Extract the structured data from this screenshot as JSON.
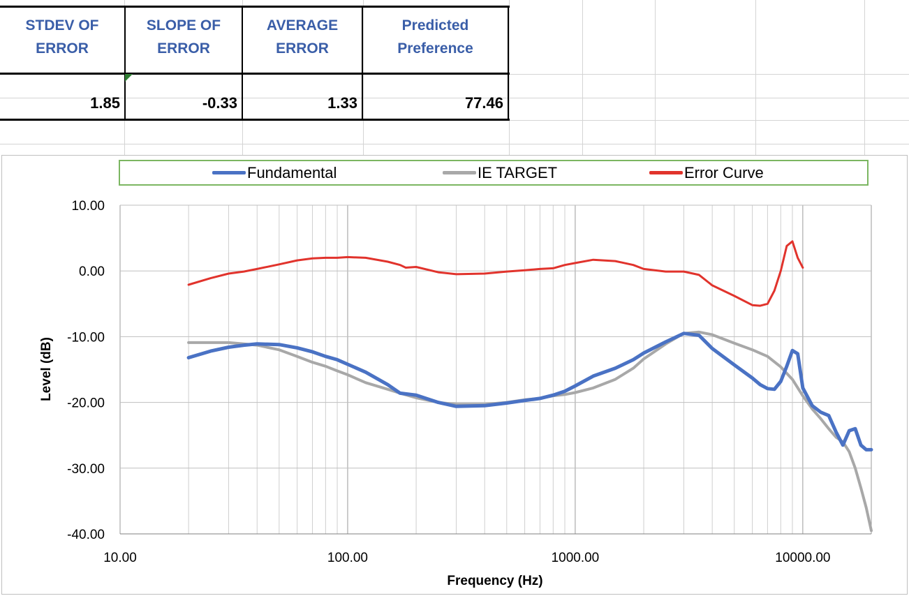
{
  "stats": {
    "headers": [
      "STDEV OF\nERROR",
      "SLOPE OF\nERROR",
      "AVERAGE\nERROR",
      "Predicted\nPreference"
    ],
    "values": [
      "1.85",
      "-0.33",
      "1.33",
      "77.46"
    ],
    "header_color": "#3a5ea8"
  },
  "legend": {
    "fundamental": "Fundamental",
    "target": "IE TARGET",
    "error": "Error Curve"
  },
  "chart_data": {
    "type": "line",
    "xscale": "log",
    "xlim": [
      10,
      20000
    ],
    "ylim": [
      -40,
      10
    ],
    "xticks": [
      "10.00",
      "100.00",
      "1000.00",
      "10000.00"
    ],
    "yticks": [
      "10.00",
      "0.00",
      "-10.00",
      "-20.00",
      "-30.00",
      "-40.00"
    ],
    "xlabel": "Frequency (Hz)",
    "ylabel": "Level (dB)",
    "grid": true,
    "legend_position": "top",
    "series": [
      {
        "name": "Fundamental",
        "color": "#4a72c4",
        "x": [
          20,
          25,
          30,
          35,
          40,
          50,
          60,
          70,
          80,
          90,
          100,
          120,
          150,
          170,
          200,
          250,
          300,
          400,
          500,
          600,
          700,
          800,
          900,
          1000,
          1200,
          1500,
          1800,
          2000,
          2500,
          3000,
          3500,
          4000,
          5000,
          6000,
          6500,
          7000,
          7500,
          8000,
          8500,
          9000,
          9500,
          10000,
          11000,
          12000,
          13000,
          14000,
          15000,
          16000,
          17000,
          18000,
          19000,
          20000
        ],
        "y": [
          -13.2,
          -12.2,
          -11.6,
          -11.3,
          -11.1,
          -11.2,
          -11.7,
          -12.3,
          -13.0,
          -13.5,
          -14.2,
          -15.4,
          -17.3,
          -18.6,
          -18.9,
          -20.0,
          -20.6,
          -20.5,
          -20.1,
          -19.7,
          -19.4,
          -18.9,
          -18.3,
          -17.5,
          -16.0,
          -14.8,
          -13.5,
          -12.5,
          -10.8,
          -9.5,
          -9.8,
          -11.8,
          -14.3,
          -16.3,
          -17.3,
          -17.9,
          -18.0,
          -16.8,
          -14.5,
          -12.1,
          -12.6,
          -17.8,
          -20.5,
          -21.5,
          -22.0,
          -24.5,
          -26.5,
          -24.3,
          -24.0,
          -26.5,
          -27.2,
          -27.2
        ]
      },
      {
        "name": "IE TARGET",
        "color": "#a8a8a8",
        "x": [
          20,
          25,
          30,
          35,
          40,
          50,
          60,
          70,
          80,
          90,
          100,
          120,
          150,
          170,
          200,
          250,
          300,
          400,
          500,
          600,
          700,
          800,
          900,
          1000,
          1200,
          1500,
          1800,
          2000,
          2500,
          3000,
          3500,
          4000,
          5000,
          6000,
          7000,
          8000,
          9000,
          10000,
          11000,
          12000,
          13000,
          14000,
          15000,
          16000,
          17000,
          18000,
          19000,
          20000
        ],
        "y": [
          -10.9,
          -10.9,
          -10.9,
          -11.1,
          -11.3,
          -12.0,
          -13.0,
          -13.9,
          -14.5,
          -15.2,
          -15.8,
          -17.0,
          -18.0,
          -18.6,
          -19.3,
          -20.0,
          -20.3,
          -20.3,
          -20.0,
          -19.6,
          -19.4,
          -19.0,
          -18.8,
          -18.5,
          -17.8,
          -16.5,
          -14.8,
          -13.4,
          -11.1,
          -9.5,
          -9.3,
          -9.7,
          -11.0,
          -12.0,
          -13.0,
          -14.6,
          -16.5,
          -19.0,
          -21.0,
          -22.5,
          -24.0,
          -25.3,
          -26.0,
          -27.5,
          -30.0,
          -33.0,
          -36.0,
          -39.5
        ]
      },
      {
        "name": "Error Curve",
        "color": "#e1332c",
        "x": [
          20,
          25,
          30,
          35,
          40,
          50,
          60,
          70,
          80,
          90,
          100,
          120,
          150,
          170,
          180,
          200,
          250,
          300,
          400,
          500,
          600,
          700,
          800,
          900,
          1000,
          1200,
          1500,
          1800,
          2000,
          2500,
          3000,
          3500,
          4000,
          5000,
          6000,
          6500,
          7000,
          7500,
          8000,
          8500,
          9000,
          9500,
          10000
        ],
        "y": [
          -2.1,
          -1.1,
          -0.4,
          -0.1,
          0.3,
          1.0,
          1.6,
          1.9,
          2.0,
          2.0,
          2.1,
          2.0,
          1.4,
          0.9,
          0.5,
          0.6,
          -0.2,
          -0.5,
          -0.4,
          -0.1,
          0.1,
          0.3,
          0.4,
          0.9,
          1.2,
          1.7,
          1.5,
          0.9,
          0.3,
          -0.1,
          -0.1,
          -0.6,
          -2.2,
          -3.8,
          -5.2,
          -5.3,
          -5.0,
          -3.0,
          0.0,
          3.8,
          4.5,
          2.0,
          0.5
        ]
      }
    ]
  }
}
